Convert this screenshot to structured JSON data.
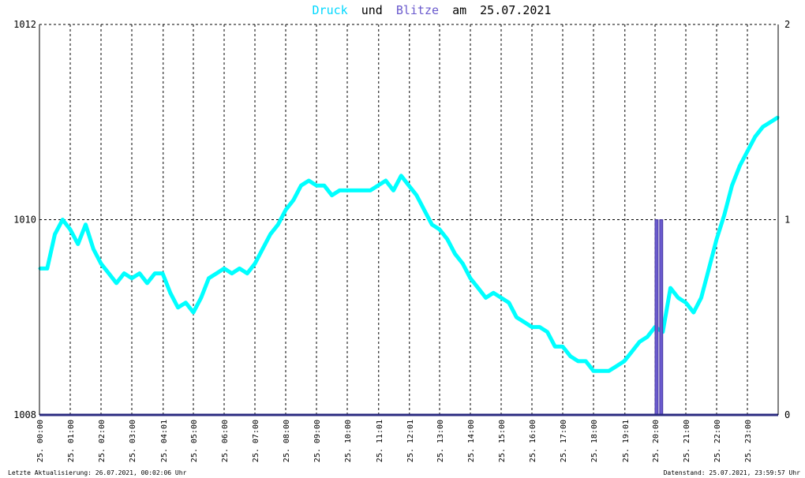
{
  "title": {
    "series1_label": "Druck",
    "word_and": "und",
    "series2_label": "Blitze",
    "word_on": "am",
    "date": "25.07.2021"
  },
  "footer": {
    "left": "Letzte Aktualisierung: 26.07.2021, 00:02:06 Uhr",
    "right": "Datenstand: 25.07.2021, 23:59:57 Uhr"
  },
  "colors": {
    "pressure": "#00ffff",
    "lightning": "#6a5acd",
    "lightning_dark": "#3f2f9a",
    "title_pressure": "#00d8ff",
    "title_lightning": "#6a5acd",
    "axis_base": "#2a2a80",
    "grid": "#000000"
  },
  "chart_data": {
    "type": "line",
    "title": "Druck und Blitze am 25.07.2021",
    "x_unit": "hours since 25.07.2021 00:00",
    "x_range": [
      0,
      24
    ],
    "y_left": {
      "range": [
        1008,
        1012
      ],
      "ticks": [
        "1008",
        "1010",
        "1012"
      ]
    },
    "y_right": {
      "range": [
        0,
        2
      ],
      "ticks": [
        "0",
        "1",
        "2"
      ]
    },
    "x_tick_labels": [
      "25. 00:00",
      "25. 01:00",
      "25. 02:00",
      "25. 03:00",
      "25. 04:01",
      "25. 05:00",
      "25. 06:00",
      "25. 07:00",
      "25. 08:00",
      "25. 09:00",
      "25. 10:00",
      "25. 11:01",
      "25. 12:01",
      "25. 13:00",
      "25. 14:00",
      "25. 15:00",
      "25. 16:00",
      "25. 17:00",
      "25. 18:00",
      "25. 19:01",
      "25. 20:00",
      "25. 21:00",
      "25. 22:00",
      "25. 23:00"
    ],
    "x_tick_hours": [
      0,
      1,
      2,
      3,
      4.02,
      5,
      6,
      7,
      8,
      9,
      10,
      11.02,
      12.02,
      13,
      14,
      15,
      16,
      17,
      18,
      19.02,
      20,
      21,
      22,
      23
    ],
    "grid": true,
    "series": [
      {
        "name": "Druck",
        "axis": "left",
        "x": [
          0,
          0.25,
          0.5,
          0.75,
          1,
          1.25,
          1.5,
          1.75,
          2,
          2.25,
          2.5,
          2.75,
          3,
          3.25,
          3.5,
          3.75,
          4,
          4.25,
          4.5,
          4.75,
          5,
          5.25,
          5.5,
          5.75,
          6,
          6.25,
          6.5,
          6.75,
          7,
          7.25,
          7.5,
          7.75,
          8,
          8.25,
          8.5,
          8.75,
          9,
          9.25,
          9.5,
          9.75,
          10,
          10.25,
          10.5,
          10.75,
          11,
          11.25,
          11.5,
          11.75,
          12,
          12.25,
          12.5,
          12.75,
          13,
          13.25,
          13.5,
          13.75,
          14,
          14.25,
          14.5,
          14.75,
          15,
          15.25,
          15.5,
          15.75,
          16,
          16.25,
          16.5,
          16.75,
          17,
          17.25,
          17.5,
          17.75,
          18,
          18.25,
          18.5,
          18.75,
          19,
          19.25,
          19.5,
          19.75,
          20,
          20.25,
          20.5,
          20.75,
          21,
          21.25,
          21.5,
          21.75,
          22,
          22.25,
          22.5,
          22.75,
          23,
          23.25,
          23.5,
          23.75,
          24
        ],
        "values": [
          1009.5,
          1009.5,
          1009.85,
          1010.0,
          1009.9,
          1009.75,
          1009.95,
          1009.7,
          1009.55,
          1009.45,
          1009.35,
          1009.45,
          1009.4,
          1009.45,
          1009.35,
          1009.45,
          1009.45,
          1009.25,
          1009.1,
          1009.15,
          1009.05,
          1009.2,
          1009.4,
          1009.45,
          1009.5,
          1009.45,
          1009.5,
          1009.45,
          1009.55,
          1009.7,
          1009.85,
          1009.95,
          1010.1,
          1010.2,
          1010.35,
          1010.4,
          1010.35,
          1010.35,
          1010.25,
          1010.3,
          1010.3,
          1010.3,
          1010.3,
          1010.3,
          1010.35,
          1010.4,
          1010.3,
          1010.45,
          1010.35,
          1010.25,
          1010.1,
          1009.95,
          1009.9,
          1009.8,
          1009.65,
          1009.55,
          1009.4,
          1009.3,
          1009.2,
          1009.25,
          1009.2,
          1009.15,
          1009.0,
          1008.95,
          1008.9,
          1008.9,
          1008.85,
          1008.7,
          1008.7,
          1008.6,
          1008.55,
          1008.55,
          1008.45,
          1008.45,
          1008.45,
          1008.5,
          1008.55,
          1008.65,
          1008.75,
          1008.8,
          1008.9,
          1008.85,
          1009.3,
          1009.2,
          1009.15,
          1009.05,
          1009.2,
          1009.5,
          1009.8,
          1010.05,
          1010.35,
          1010.55,
          1010.7,
          1010.85,
          1010.95,
          1011.0,
          1011.05
        ]
      },
      {
        "name": "Blitze",
        "axis": "right",
        "type": "bar",
        "x": [
          20.05,
          20.2
        ],
        "values": [
          1,
          1
        ]
      }
    ]
  }
}
